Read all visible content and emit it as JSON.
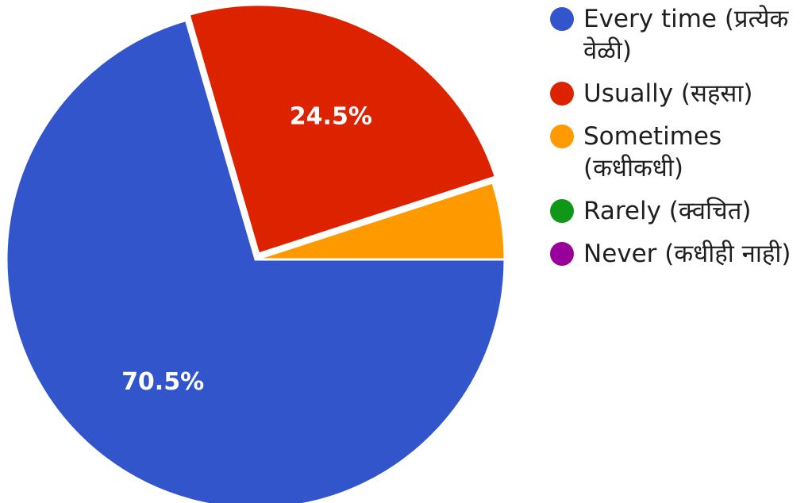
{
  "chart_data": {
    "type": "pie",
    "slices": [
      {
        "label": "Every time (प्रत्येक वेळी)",
        "value": 70.5,
        "value_label": "70.5%",
        "color": "#3355cc",
        "exploded": false
      },
      {
        "label": "Usually (सहसा)",
        "value": 24.5,
        "value_label": "24.5%",
        "color": "#dd2200",
        "exploded": true
      },
      {
        "label": "Sometimes (कधीकधी)",
        "value": 5.0,
        "value_label": "",
        "color": "#ff9900",
        "exploded": false
      },
      {
        "label": "Rarely (क्वचित)",
        "value": 0,
        "value_label": "",
        "color": "#109618",
        "exploded": false
      },
      {
        "label": "Never (कधीही नाही)",
        "value": 0,
        "value_label": "",
        "color": "#990099",
        "exploded": false
      }
    ],
    "start_angle": "3 o'clock, clockwise",
    "legend_position": "right"
  }
}
